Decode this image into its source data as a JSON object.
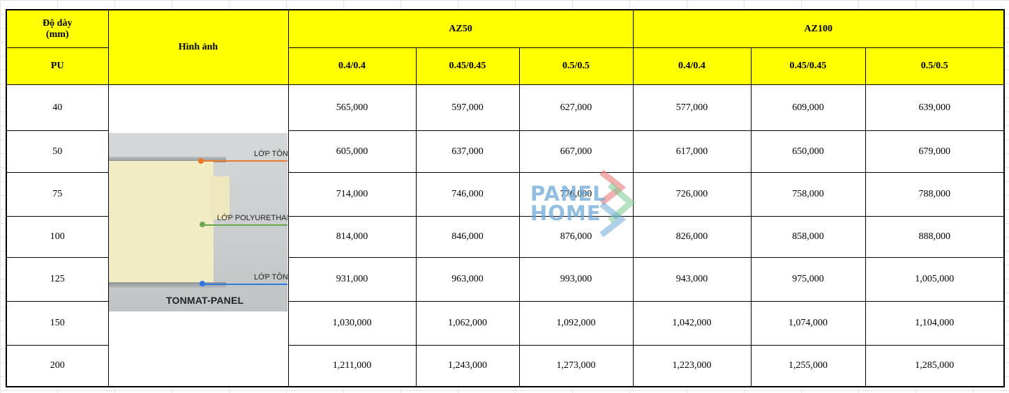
{
  "header": {
    "thickness_label": "Độ dày",
    "thickness_unit": "(mm)",
    "pu_label": "PU",
    "image_label": "Hình ảnh",
    "groups": [
      "AZ50",
      "AZ100"
    ],
    "sub_columns": [
      "0.4/0.4",
      "0.45/0.45",
      "0.5/0.5",
      "0.4/0.4",
      "0.45/0.45",
      "0.5/0.5"
    ]
  },
  "rows": [
    {
      "pu": "40",
      "prices": [
        "565,000",
        "597,000",
        "627,000",
        "577,000",
        "609,000",
        "639,000"
      ]
    },
    {
      "pu": "50",
      "prices": [
        "605,000",
        "637,000",
        "667,000",
        "617,000",
        "650,000",
        "679,000"
      ]
    },
    {
      "pu": "75",
      "prices": [
        "714,000",
        "746,000",
        "776,000",
        "726,000",
        "758,000",
        "788,000"
      ]
    },
    {
      "pu": "100",
      "prices": [
        "814,000",
        "846,000",
        "876,000",
        "826,000",
        "858,000",
        "888,000"
      ]
    },
    {
      "pu": "125",
      "prices": [
        "931,000",
        "963,000",
        "993,000",
        "943,000",
        "975,000",
        "1,005,000"
      ]
    },
    {
      "pu": "150",
      "prices": [
        "1,030,000",
        "1,062,000",
        "1,092,000",
        "1,042,000",
        "1,074,000",
        "1,104,000"
      ]
    },
    {
      "pu": "200",
      "prices": [
        "1,211,000",
        "1,243,000",
        "1,273,000",
        "1,223,000",
        "1,255,000",
        "1,285,000"
      ]
    }
  ],
  "figure": {
    "label_top": "LỚP TÔN",
    "label_middle": "LỚP POLYURETHANE",
    "label_bottom": "LỚP TÔN",
    "caption": "TONMAT-PANEL",
    "colors": {
      "top": "#e8782a",
      "middle": "#6aa84f",
      "bottom": "#2b78e4"
    }
  },
  "watermark": {
    "line1": "PANEL",
    "line2": "HOME"
  },
  "colors": {
    "header_bg": "#ffff00"
  }
}
